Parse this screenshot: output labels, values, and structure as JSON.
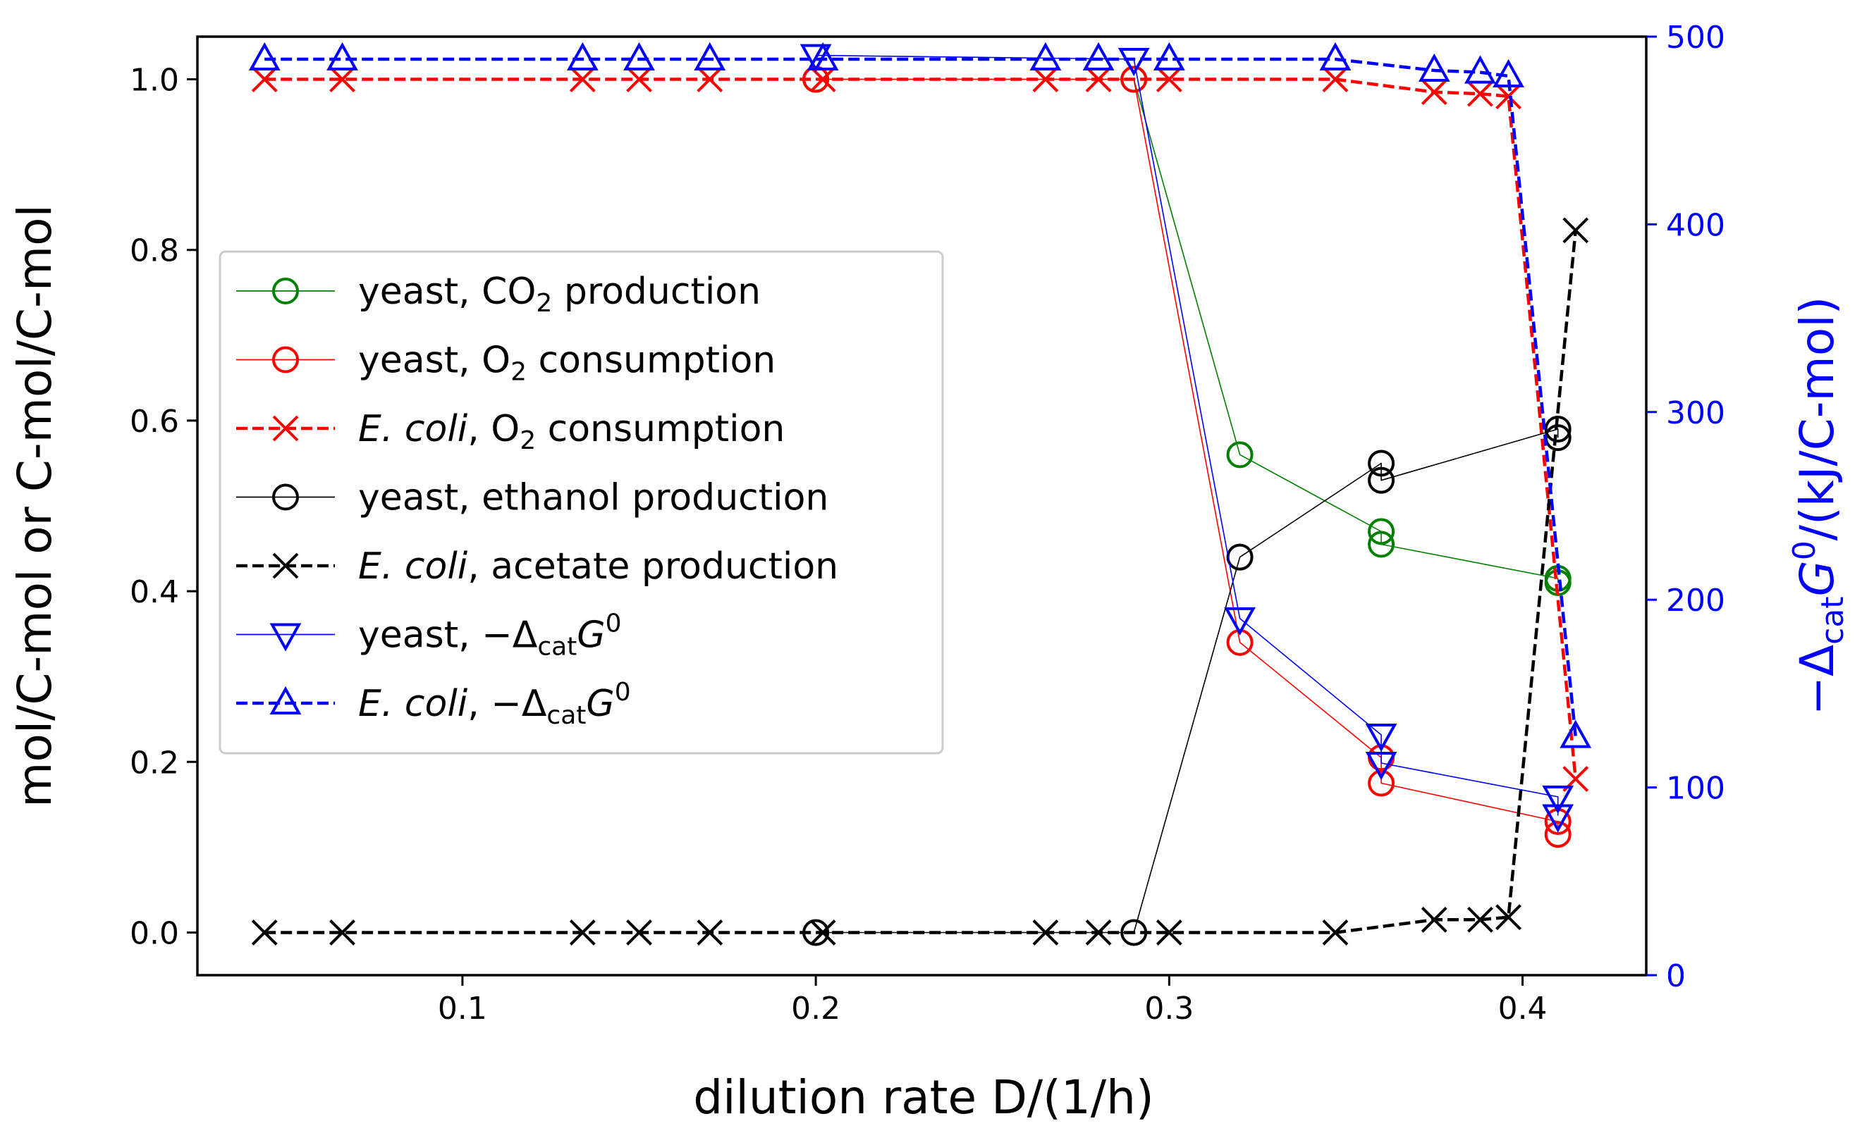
{
  "chart_data": {
    "type": "line",
    "xlabel": "dilution rate  D/(1/h)",
    "ylabel": "mol/C-mol or C-mol/C-mol",
    "y2label": "−Δ_cat G^0 /(kJ/C-mol)",
    "y2label_parts": {
      "pre": "−Δ",
      "sub": "cat",
      "var": "G",
      "sup": "0",
      "post": "/(kJ/C-mol)"
    },
    "xlim": [
      0.025,
      0.435
    ],
    "ylim": [
      -0.05,
      1.05
    ],
    "y2lim": [
      0,
      500
    ],
    "xticks": [
      0.1,
      0.2,
      0.3,
      0.4
    ],
    "xtick_labels": [
      "0.1",
      "0.2",
      "0.3",
      "0.4"
    ],
    "yticks": [
      0.0,
      0.2,
      0.4,
      0.6,
      0.8,
      1.0
    ],
    "ytick_labels": [
      "0.0",
      "0.2",
      "0.4",
      "0.6",
      "0.8",
      "1.0"
    ],
    "y2ticks": [
      0,
      100,
      200,
      300,
      400,
      500
    ],
    "y2tick_labels": [
      "0",
      "100",
      "200",
      "300",
      "400",
      "500"
    ],
    "grid": false,
    "legend_position": "center-left",
    "colors": {
      "green": "#008000",
      "red": "#ff0000",
      "black": "#000000",
      "blue": "#0000ff"
    },
    "series": [
      {
        "id": "yeast-co2",
        "name": "yeast, CO2 production",
        "legend": {
          "pre": "yeast, CO",
          "sub": "2",
          "post": " production"
        },
        "axis": "left",
        "color": "#008000",
        "marker": "circle",
        "dashed": false,
        "x": [
          0.2,
          0.29,
          0.32,
          0.36,
          0.36,
          0.41,
          0.41
        ],
        "y": [
          1.0,
          1.0,
          0.56,
          0.47,
          0.455,
          0.415,
          0.41
        ]
      },
      {
        "id": "yeast-o2",
        "name": "yeast, O2 consumption",
        "legend": {
          "pre": "yeast, O",
          "sub": "2",
          "post": " consumption"
        },
        "axis": "left",
        "color": "#ff0000",
        "marker": "circle",
        "dashed": false,
        "x": [
          0.2,
          0.29,
          0.32,
          0.36,
          0.36,
          0.41,
          0.41
        ],
        "y": [
          1.0,
          1.0,
          0.34,
          0.205,
          0.175,
          0.13,
          0.115
        ]
      },
      {
        "id": "ecoli-o2",
        "name": "E. coli, O2 consumption",
        "legend": {
          "ital": "E. coli",
          "pre": ", O",
          "sub": "2",
          "post": " consumption"
        },
        "axis": "left",
        "color": "#ff0000",
        "marker": "x",
        "dashed": true,
        "x": [
          0.044,
          0.066,
          0.134,
          0.15,
          0.17,
          0.202,
          0.265,
          0.28,
          0.3,
          0.347,
          0.375,
          0.388,
          0.396,
          0.415
        ],
        "y": [
          1.0,
          1.0,
          1.0,
          1.0,
          1.0,
          1.0,
          1.0,
          1.0,
          1.0,
          1.0,
          0.985,
          0.983,
          0.98,
          0.18
        ]
      },
      {
        "id": "yeast-ethanol",
        "name": "yeast, ethanol production",
        "legend": {
          "pre": "yeast, ethanol production"
        },
        "axis": "left",
        "color": "#000000",
        "marker": "circle",
        "dashed": false,
        "x": [
          0.2,
          0.29,
          0.32,
          0.36,
          0.36,
          0.41,
          0.41
        ],
        "y": [
          0.0,
          0.0,
          0.44,
          0.55,
          0.53,
          0.59,
          0.58
        ]
      },
      {
        "id": "ecoli-acetate",
        "name": "E. coli, acetate production",
        "legend": {
          "ital": "E. coli",
          "pre": ", acetate production"
        },
        "axis": "left",
        "color": "#000000",
        "marker": "x",
        "dashed": true,
        "x": [
          0.044,
          0.066,
          0.134,
          0.15,
          0.17,
          0.202,
          0.265,
          0.28,
          0.3,
          0.347,
          0.375,
          0.388,
          0.396,
          0.415
        ],
        "y": [
          0.0,
          0.0,
          0.0,
          0.0,
          0.0,
          0.0,
          0.0,
          0.0,
          0.0,
          0.0,
          0.015,
          0.015,
          0.018,
          0.823
        ]
      },
      {
        "id": "yeast-dg",
        "name": "yeast, −Δ_cat G^0",
        "legend": {
          "pre": "yeast, −Δ",
          "sub": "cat",
          "var": "G",
          "sup": "0"
        },
        "axis": "right",
        "color": "#0000ff",
        "marker": "triangle-down",
        "dashed": false,
        "x": [
          0.2,
          0.29,
          0.32,
          0.36,
          0.36,
          0.41,
          0.41
        ],
        "y": [
          490,
          488,
          190,
          128,
          113,
          95,
          85
        ]
      },
      {
        "id": "ecoli-dg",
        "name": "E. coli, −Δ_cat G^0",
        "legend": {
          "ital": "E. coli",
          "pre": ", −Δ",
          "sub": "cat",
          "var": "G",
          "sup": "0"
        },
        "axis": "right",
        "color": "#0000ff",
        "marker": "triangle-up",
        "dashed": true,
        "x": [
          0.044,
          0.066,
          0.134,
          0.15,
          0.17,
          0.202,
          0.265,
          0.28,
          0.3,
          0.347,
          0.375,
          0.388,
          0.396,
          0.415
        ],
        "y": [
          488,
          488,
          488,
          488,
          488,
          488,
          488,
          488,
          488,
          488,
          482,
          481,
          479,
          127
        ]
      }
    ]
  }
}
